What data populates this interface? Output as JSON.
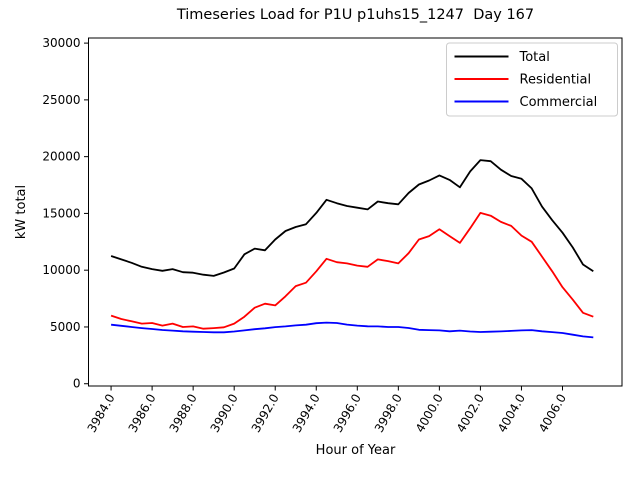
{
  "figure": {
    "title": "Timeseries Load for P1U p1uhs15_1247  Day 167",
    "xlabel": "Hour of Year",
    "ylabel": "kW total"
  },
  "chart_data": {
    "type": "line",
    "title": "Timeseries Load for P1U p1uhs15_1247  Day 167",
    "xlabel": "Hour of Year",
    "ylabel": "kW total",
    "grid": false,
    "legend_position": "upper right",
    "xlim": [
      3982.9,
      4008.9
    ],
    "ylim": [
      -200,
      30450
    ],
    "xticks": {
      "values": [
        3984,
        3986,
        3988,
        3990,
        3992,
        3994,
        3996,
        3998,
        4000,
        4002,
        4004,
        4006
      ],
      "labels": [
        "3984.0",
        "3986.0",
        "3988.0",
        "3990.0",
        "3992.0",
        "3994.0",
        "3996.0",
        "3998.0",
        "4000.0",
        "4002.0",
        "4004.0",
        "4006.0"
      ]
    },
    "yticks": {
      "values": [
        0,
        5000,
        10000,
        15000,
        20000,
        25000,
        30000
      ],
      "labels": [
        "0",
        "5000",
        "10000",
        "15000",
        "20000",
        "25000",
        "30000"
      ]
    },
    "x": [
      3984.0,
      3984.5,
      3985.0,
      3985.5,
      3986.0,
      3986.5,
      3987.0,
      3987.5,
      3988.0,
      3988.5,
      3989.0,
      3989.5,
      3990.0,
      3990.5,
      3991.0,
      3991.5,
      3992.0,
      3992.5,
      3993.0,
      3993.5,
      3994.0,
      3994.5,
      3995.0,
      3995.5,
      3996.0,
      3996.5,
      3997.0,
      3997.5,
      3998.0,
      3998.5,
      3999.0,
      3999.5,
      4000.0,
      4000.5,
      4001.0,
      4001.5,
      4002.0,
      4002.5,
      4003.0,
      4003.5,
      4004.0,
      4004.5,
      4005.0,
      4005.5,
      4006.0,
      4006.5,
      4007.0,
      4007.5
    ],
    "series": [
      {
        "name": "Total",
        "color": "#000000",
        "values": [
          11250,
          10950,
          10650,
          10300,
          10100,
          9950,
          10100,
          9820,
          9780,
          9600,
          9500,
          9800,
          10150,
          11400,
          11900,
          11750,
          12700,
          13450,
          13800,
          14050,
          15050,
          16200,
          15900,
          15650,
          15500,
          15350,
          16050,
          15900,
          15800,
          16800,
          17550,
          17900,
          18350,
          17950,
          17300,
          18700,
          19700,
          19600,
          18850,
          18300,
          18050,
          17200,
          15600,
          14400,
          13300,
          12000,
          10500,
          9900
        ]
      },
      {
        "name": "Residential",
        "color": "#ff0000",
        "values": [
          6000,
          5700,
          5500,
          5300,
          5350,
          5120,
          5300,
          5000,
          5050,
          4850,
          4900,
          4970,
          5300,
          5900,
          6700,
          7050,
          6900,
          7700,
          8600,
          8900,
          9900,
          11000,
          10700,
          10600,
          10400,
          10300,
          10950,
          10800,
          10600,
          11500,
          12700,
          13000,
          13600,
          13000,
          12400,
          13700,
          15050,
          14800,
          14250,
          13900,
          13050,
          12500,
          11200,
          9900,
          8500,
          7400,
          6250,
          5900
        ]
      },
      {
        "name": "Commercial",
        "color": "#0000ff",
        "values": [
          5200,
          5100,
          5000,
          4900,
          4820,
          4730,
          4680,
          4620,
          4580,
          4560,
          4530,
          4530,
          4600,
          4700,
          4800,
          4880,
          4990,
          5050,
          5140,
          5200,
          5330,
          5380,
          5350,
          5210,
          5120,
          5060,
          5050,
          5000,
          5000,
          4910,
          4750,
          4720,
          4700,
          4620,
          4680,
          4600,
          4560,
          4580,
          4610,
          4650,
          4700,
          4720,
          4620,
          4550,
          4470,
          4320,
          4170,
          4080
        ]
      }
    ]
  }
}
